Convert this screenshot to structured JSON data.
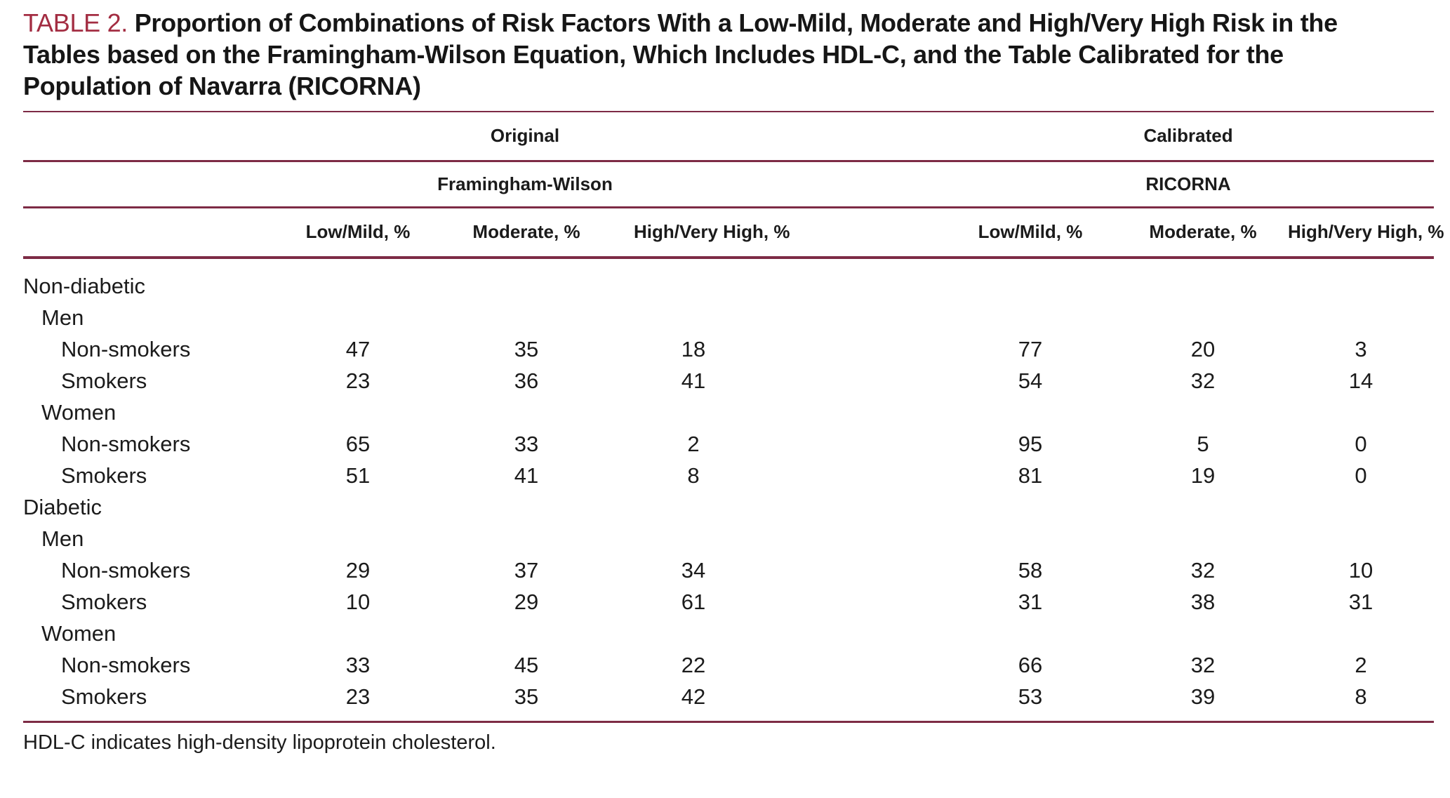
{
  "title": {
    "label": "TABLE 2.",
    "text": "Proportion of Combinations of Risk Factors With a Low-Mild, Moderate and High/Very High Risk in the Tables based on the Framingham-Wilson Equation, Which Includes HDL-C, and the Table Calibrated for the Population of Navarra (RICORNA)"
  },
  "colors": {
    "accent_red": "#a32d42",
    "rule_maroon": "#7d2b45",
    "text": "#1b1b1b"
  },
  "table": {
    "group_headers": [
      {
        "label": "Original"
      },
      {
        "label": "Calibrated"
      }
    ],
    "subgroup_headers": [
      {
        "label": "Framingham-Wilson"
      },
      {
        "label": "RICORNA"
      }
    ],
    "column_headers": [
      "Low/Mild, %",
      "Moderate, %",
      "High/Very High, %",
      "Low/Mild, %",
      "Moderate, %",
      "High/Very High, %"
    ],
    "rows": [
      {
        "label": "Non-diabetic",
        "level": 0,
        "values": []
      },
      {
        "label": "Men",
        "level": 1,
        "values": []
      },
      {
        "label": "Non-smokers",
        "level": 2,
        "values": [
          47,
          35,
          18,
          77,
          20,
          3
        ]
      },
      {
        "label": "Smokers",
        "level": 2,
        "values": [
          23,
          36,
          41,
          54,
          32,
          14
        ]
      },
      {
        "label": "Women",
        "level": 1,
        "values": []
      },
      {
        "label": "Non-smokers",
        "level": 2,
        "values": [
          65,
          33,
          2,
          95,
          5,
          0
        ]
      },
      {
        "label": "Smokers",
        "level": 2,
        "values": [
          51,
          41,
          8,
          81,
          19,
          0
        ]
      },
      {
        "label": "Diabetic",
        "level": 0,
        "values": []
      },
      {
        "label": "Men",
        "level": 1,
        "values": []
      },
      {
        "label": "Non-smokers",
        "level": 2,
        "values": [
          29,
          37,
          34,
          58,
          32,
          10
        ]
      },
      {
        "label": "Smokers",
        "level": 2,
        "values": [
          10,
          29,
          61,
          31,
          38,
          31
        ]
      },
      {
        "label": "Women",
        "level": 1,
        "values": []
      },
      {
        "label": "Non-smokers",
        "level": 2,
        "values": [
          33,
          45,
          22,
          66,
          32,
          2
        ]
      },
      {
        "label": "Smokers",
        "level": 2,
        "values": [
          23,
          35,
          42,
          53,
          39,
          8
        ]
      }
    ]
  },
  "footnote": "HDL-C indicates high-density lipoprotein cholesterol."
}
